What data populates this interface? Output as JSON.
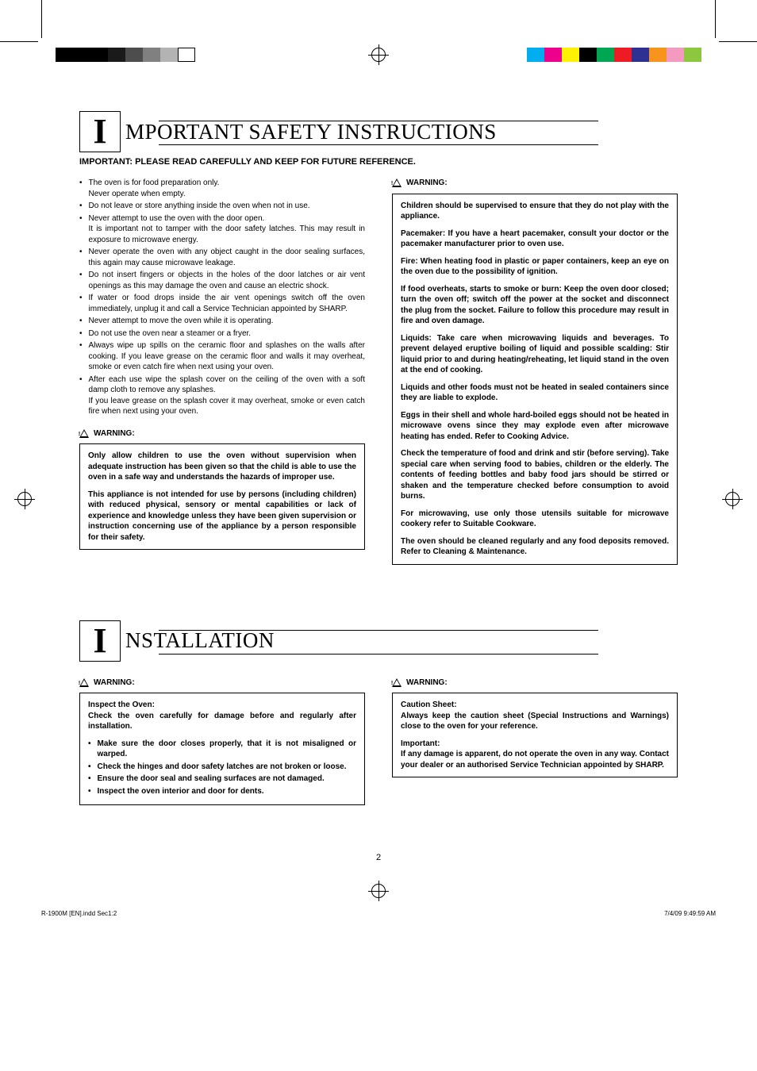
{
  "print_swatches_left": [
    "#000000",
    "#000000",
    "#000000",
    "#1a1a1a",
    "#4d4d4d",
    "#808080",
    "#b3b3b3",
    "#ffffff"
  ],
  "print_swatches_right": [
    "#00aeef",
    "#ec008c",
    "#fff200",
    "#000000",
    "#00a651",
    "#ed1c24",
    "#2e3192",
    "#f7941d",
    "#f49ac1",
    "#8dc63f"
  ],
  "section1": {
    "dropcap": "I",
    "title": "MPORTANT SAFETY INSTRUCTIONS",
    "subhead": "IMPORTANT: PLEASE READ CAREFULLY AND KEEP FOR FUTURE REFERENCE.",
    "bullets": [
      "The oven is for food preparation only.\nNever operate when empty.",
      "Do not leave or store anything inside the oven when not in use.",
      "Never attempt to use the oven with the door open.\nIt is important not to tamper with the door safety latches. This may result in exposure to microwave energy.",
      "Never operate the oven with any object caught in the door sealing surfaces, this again may cause microwave leakage.",
      "Do not insert fingers or objects in the holes of the door latches or air vent openings as this may damage the oven and cause an electric shock.",
      "If water or food drops inside the air vent openings switch off the oven immediately, unplug it and call a Service Technician appointed by SHARP.",
      "Never attempt to move the oven while it is operating.",
      "Do not use the oven near a steamer or a fryer.",
      "Always wipe up spills on the ceramic floor and splashes on the walls after cooking. If you leave grease on the ceramic floor and walls it may overheat, smoke or even catch fire when next using your oven.",
      "After each use wipe the splash cover on the ceiling of the oven with a soft damp cloth to remove any splashes.\nIf you leave grease on the splash cover it may overheat, smoke or even catch fire when next using your oven."
    ],
    "warn_label": "WARNING:",
    "warnbox_left": [
      "Only allow children to use the oven without supervision when adequate instruction has been given so that the child is able to use the oven in a safe way and understands the hazards of improper use.",
      "This appliance is not intended for use by persons (including children) with reduced physical, sensory or mental capabilities or lack of experience and knowledge unless they have been given supervision or instruction concerning use of the appliance by a person responsible for their safety."
    ],
    "warnbox_right": [
      "Children should be supervised to ensure that they do not play with the appliance.",
      "Pacemaker: If you have a heart pacemaker, consult your doctor or the pacemaker manufacturer prior to oven use.",
      "Fire: When heating food in plastic or paper containers, keep an eye on the oven due to the possibility of ignition.",
      "If food overheats, starts to smoke or burn: Keep the oven door closed; turn the oven off; switch off the power at the socket and disconnect the plug from the socket. Failure to follow this procedure may result in fire and oven damage.",
      "Liquids: Take care when microwaving liquids and beverages. To prevent delayed eruptive boiling of liquid and possible scalding: Stir liquid prior to and during heating/reheating, let liquid stand in the oven at the end of cooking.",
      "Liquids and other foods must not be heated in sealed containers since they are liable to explode.",
      "Eggs in their shell and whole hard-boiled eggs should not  be heated in microwave ovens since they may explode  even after microwave heating has ended. Refer to Cooking Advice.",
      "Check the temperature of food and drink and stir (before serving). Take special care when serving food to babies, children or the elderly. The contents of feeding bottles and baby food jars should be stirred or shaken and the temperature checked before consumption to avoid burns.",
      "For microwaving, use only those utensils suitable for microwave cookery refer to Suitable Cookware.",
      "The oven should be cleaned regularly and any food deposits removed. Refer to Cleaning & Maintenance."
    ]
  },
  "section2": {
    "dropcap": "I",
    "title": "NSTALLATION",
    "warn_label": "WARNING:",
    "left_title": "Inspect the Oven:",
    "left_intro": "Check the oven carefully for damage before and regularly after installation.",
    "left_bullets": [
      "Make sure the door closes properly, that it is not misaligned or warped.",
      "Check the hinges and door safety latches are not broken or loose.",
      "Ensure the door seal and sealing surfaces are not damaged.",
      "Inspect the oven interior and door for dents."
    ],
    "right_title1": "Caution Sheet:",
    "right_p1": "Always keep the caution sheet (Special Instructions and Warnings) close to the oven for your reference.",
    "right_title2": "Important:",
    "right_p2": "If any damage is apparent, do not operate the oven in any way. Contact your dealer or an authorised Service Technician appointed by SHARP."
  },
  "page_number": "2",
  "footer_left": "R-1900M [EN].indd   Sec1:2",
  "footer_right": "7/4/09   9:49:59 AM"
}
